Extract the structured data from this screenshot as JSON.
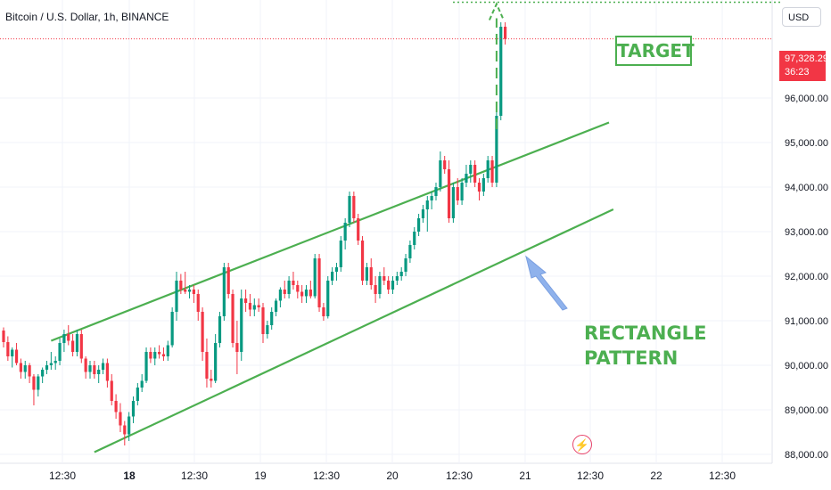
{
  "header": {
    "symbol_title": "Bitcoin / U.S. Dollar, 1h, BINANCE"
  },
  "currency_button": {
    "label": "USD"
  },
  "last_price": {
    "value": "97,328.29",
    "countdown": "36:23"
  },
  "colors": {
    "up": "#089981",
    "down": "#f23645",
    "channel": "#4caf50",
    "arrow": "#8fb2ec",
    "target_line": "#4caf50",
    "event": "#e8446a"
  },
  "annotations": {
    "target": "TARGET",
    "pattern_line1": "RECTANGLE",
    "pattern_line2": "PATTERN"
  },
  "event_icon": {
    "name": "lightning-icon"
  },
  "chart_data": {
    "type": "candlestick",
    "y_ticks": [
      88000,
      89000,
      90000,
      91000,
      92000,
      93000,
      94000,
      95000,
      96000
    ],
    "y_tick_labels": [
      "88,000.00",
      "89,000.00",
      "90,000.00",
      "91,000.00",
      "92,000.00",
      "93,000.00",
      "94,000.00",
      "95,000.00",
      "96,000.00"
    ],
    "ylim": [
      87800,
      98200
    ],
    "x_tick_labels": [
      "12:30",
      "18",
      "12:30",
      "19",
      "12:30",
      "20",
      "12:30",
      "21",
      "12:30",
      "22",
      "12:30"
    ],
    "x_tick_bold": [
      false,
      true,
      false,
      false,
      false,
      false,
      false,
      false,
      false,
      false,
      false
    ],
    "current_price": 97328.29,
    "target_price": 98150,
    "channel": {
      "upper": [
        {
          "i": 11,
          "y": 90550
        },
        {
          "i": 140,
          "y": 95450
        }
      ],
      "lower": [
        {
          "i": 21,
          "y": 88050
        },
        {
          "i": 141,
          "y": 93500
        }
      ]
    },
    "candles": [
      [
        90780,
        90850,
        90400,
        90520
      ],
      [
        90520,
        90650,
        90100,
        90200
      ],
      [
        90200,
        90400,
        89950,
        90350
      ],
      [
        90350,
        90500,
        90000,
        90050
      ],
      [
        90050,
        90150,
        89700,
        89850
      ],
      [
        89850,
        90100,
        89700,
        90000
      ],
      [
        90000,
        90050,
        89600,
        89750
      ],
      [
        89750,
        89800,
        89100,
        89450
      ],
      [
        89450,
        89800,
        89300,
        89750
      ],
      [
        89750,
        89950,
        89600,
        89900
      ],
      [
        89900,
        90100,
        89800,
        90000
      ],
      [
        90000,
        90300,
        89900,
        90050
      ],
      [
        90050,
        90200,
        89900,
        90100
      ],
      [
        90100,
        90600,
        90000,
        90500
      ],
      [
        90500,
        90800,
        90300,
        90700
      ],
      [
        90700,
        90900,
        90450,
        90550
      ],
      [
        90550,
        90700,
        90200,
        90300
      ],
      [
        90300,
        90800,
        90200,
        90700
      ],
      [
        90700,
        90800,
        90050,
        90150
      ],
      [
        90150,
        90200,
        89700,
        89850
      ],
      [
        89850,
        90100,
        89700,
        90000
      ],
      [
        90000,
        90100,
        89700,
        89800
      ],
      [
        89800,
        90000,
        89600,
        89900
      ],
      [
        89900,
        90150,
        89800,
        90050
      ],
      [
        90050,
        90150,
        89500,
        89650
      ],
      [
        89650,
        89800,
        89100,
        89200
      ],
      [
        89200,
        89350,
        88800,
        88950
      ],
      [
        88950,
        89150,
        88500,
        88650
      ],
      [
        88650,
        88750,
        88200,
        88450
      ],
      [
        88450,
        88950,
        88300,
        88850
      ],
      [
        88850,
        89300,
        88700,
        89200
      ],
      [
        89200,
        89600,
        89100,
        89500
      ],
      [
        89500,
        89800,
        89400,
        89650
      ],
      [
        89650,
        90400,
        89600,
        90300
      ],
      [
        90300,
        90400,
        90050,
        90150
      ],
      [
        90150,
        90400,
        90000,
        90300
      ],
      [
        90300,
        90450,
        90150,
        90250
      ],
      [
        90250,
        90400,
        90100,
        90200
      ],
      [
        90200,
        90550,
        90100,
        90450
      ],
      [
        90450,
        91300,
        90400,
        91200
      ],
      [
        91200,
        92100,
        91000,
        91900
      ],
      [
        91900,
        92050,
        91600,
        91700
      ],
      [
        91700,
        92100,
        91600,
        91650
      ],
      [
        91650,
        91800,
        91500,
        91700
      ],
      [
        91700,
        91800,
        91400,
        91600
      ],
      [
        91600,
        91700,
        91000,
        91200
      ],
      [
        91200,
        91300,
        90100,
        90300
      ],
      [
        90300,
        90600,
        89500,
        89700
      ],
      [
        89700,
        89900,
        89500,
        89650
      ],
      [
        89650,
        90700,
        89600,
        90500
      ],
      [
        90500,
        91200,
        90400,
        91100
      ],
      [
        91100,
        92300,
        91000,
        92200
      ],
      [
        92200,
        92300,
        91500,
        91600
      ],
      [
        91600,
        91700,
        90400,
        90500
      ],
      [
        90500,
        91000,
        89800,
        90300
      ],
      [
        90300,
        91700,
        90100,
        91500
      ],
      [
        91500,
        91700,
        91200,
        91400
      ],
      [
        91400,
        91600,
        91100,
        91250
      ],
      [
        91250,
        91500,
        91100,
        91350
      ],
      [
        91350,
        91500,
        91200,
        91300
      ],
      [
        91300,
        91400,
        90500,
        90700
      ],
      [
        90700,
        91000,
        90600,
        90900
      ],
      [
        90900,
        91300,
        90800,
        91200
      ],
      [
        91200,
        91500,
        91100,
        91450
      ],
      [
        91450,
        91750,
        91300,
        91700
      ],
      [
        91700,
        91900,
        91500,
        91600
      ],
      [
        91600,
        92000,
        91500,
        91900
      ],
      [
        91900,
        92100,
        91700,
        91800
      ],
      [
        91800,
        91900,
        91500,
        91650
      ],
      [
        91650,
        91800,
        91400,
        91550
      ],
      [
        91550,
        91800,
        91400,
        91700
      ],
      [
        91700,
        91900,
        91500,
        91550
      ],
      [
        91550,
        92500,
        91500,
        92400
      ],
      [
        92400,
        92500,
        91200,
        91300
      ],
      [
        91300,
        91400,
        91000,
        91100
      ],
      [
        91100,
        92000,
        91050,
        91900
      ],
      [
        91900,
        92200,
        91800,
        92100
      ],
      [
        92100,
        92300,
        91900,
        92200
      ],
      [
        92200,
        92900,
        92100,
        92800
      ],
      [
        92800,
        93300,
        92600,
        93200
      ],
      [
        93200,
        93900,
        93100,
        93800
      ],
      [
        93800,
        93900,
        93200,
        93300
      ],
      [
        93300,
        93400,
        92700,
        92800
      ],
      [
        92800,
        92900,
        91800,
        91900
      ],
      [
        91900,
        92300,
        91800,
        92200
      ],
      [
        92200,
        92400,
        91700,
        91800
      ],
      [
        91800,
        92000,
        91400,
        91600
      ],
      [
        91600,
        92100,
        91500,
        92000
      ],
      [
        92000,
        92200,
        91800,
        91900
      ],
      [
        91900,
        92000,
        91600,
        91700
      ],
      [
        91700,
        92000,
        91600,
        91900
      ],
      [
        91900,
        92100,
        91800,
        92000
      ],
      [
        92000,
        92200,
        91900,
        92100
      ],
      [
        92100,
        92500,
        92000,
        92400
      ],
      [
        92400,
        92800,
        92300,
        92700
      ],
      [
        92700,
        93100,
        92600,
        93000
      ],
      [
        93000,
        93400,
        92900,
        93300
      ],
      [
        93300,
        93600,
        93200,
        93500
      ],
      [
        93500,
        93800,
        93000,
        93700
      ],
      [
        93700,
        93900,
        93500,
        93800
      ],
      [
        93800,
        94100,
        93700,
        94000
      ],
      [
        94000,
        94800,
        93900,
        94600
      ],
      [
        94600,
        94700,
        94300,
        94400
      ],
      [
        94400,
        94600,
        93200,
        93300
      ],
      [
        93300,
        94100,
        93200,
        94000
      ],
      [
        94000,
        94200,
        93600,
        93700
      ],
      [
        93700,
        94200,
        93600,
        94100
      ],
      [
        94100,
        94500,
        94000,
        94300
      ],
      [
        94300,
        94600,
        94100,
        94500
      ],
      [
        94500,
        94600,
        94000,
        94100
      ],
      [
        94100,
        94200,
        93700,
        93900
      ],
      [
        93900,
        94300,
        93800,
        94200
      ],
      [
        94200,
        94700,
        94100,
        94600
      ],
      [
        94600,
        94700,
        94000,
        94100
      ],
      [
        94100,
        95700,
        94000,
        95600
      ],
      [
        95600,
        97700,
        95500,
        97600
      ],
      [
        97600,
        97700,
        97200,
        97328
      ]
    ]
  }
}
